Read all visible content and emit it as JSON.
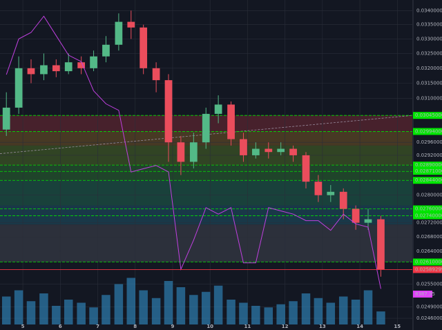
{
  "chart_data": {
    "type": "candlestick",
    "log_scale": true,
    "grid": true,
    "background": "#131722",
    "up_color": "#53b987",
    "down_color": "#eb4d5c",
    "xlim": [
      4.39,
      15.4
    ],
    "xticks": [
      5,
      6,
      7,
      8,
      9,
      10,
      11,
      12,
      13,
      14,
      15
    ],
    "ylim": [
      0.02444,
      0.03438
    ],
    "yticks": [
      {
        "value": 0.034,
        "label": "0.03400000"
      },
      {
        "value": 0.0335,
        "label": "0.03350000"
      },
      {
        "value": 0.033,
        "label": "0.03300000"
      },
      {
        "value": 0.0325,
        "label": "0.03250000"
      },
      {
        "value": 0.032,
        "label": "0.03200000"
      },
      {
        "value": 0.0315,
        "label": "0.03150000"
      },
      {
        "value": 0.031,
        "label": "0.03100000"
      },
      {
        "value": 0.0296,
        "label": "0.02960000"
      },
      {
        "value": 0.0292,
        "label": "0.02920000"
      },
      {
        "value": 0.028,
        "label": "0.02800000"
      },
      {
        "value": 0.0272,
        "label": "0.02720000"
      },
      {
        "value": 0.0268,
        "label": "0.02680000"
      },
      {
        "value": 0.0264,
        "label": "0.02640000"
      },
      {
        "value": 0.0255,
        "label": "0.02550000"
      },
      {
        "value": 0.0249,
        "label": "0.02490000"
      },
      {
        "value": 0.0246,
        "label": "0.02460000"
      }
    ],
    "x": [
      4.56,
      4.89,
      5.22,
      5.56,
      5.89,
      6.22,
      6.56,
      6.89,
      7.22,
      7.56,
      7.89,
      8.22,
      8.56,
      8.89,
      9.22,
      9.56,
      9.89,
      10.22,
      10.56,
      10.89,
      11.22,
      11.56,
      11.89,
      12.22,
      12.56,
      12.89,
      13.22,
      13.56,
      13.89,
      14.22,
      14.56
    ],
    "open": [
      0.03,
      0.0307,
      0.032,
      0.0318,
      0.0321,
      0.0319,
      0.0322,
      0.032,
      0.0324,
      0.0328,
      0.0336,
      0.0334,
      0.032,
      0.0316,
      0.0296,
      0.029,
      0.0296,
      0.0305,
      0.0308,
      0.0297,
      0.0292,
      0.0294,
      0.0293,
      0.0294,
      0.0292,
      0.0284,
      0.028,
      0.0281,
      0.0276,
      0.0272,
      0.0273
    ],
    "high": [
      0.0312,
      0.0324,
      0.0323,
      0.0325,
      0.0323,
      0.0325,
      0.0324,
      0.0326,
      0.0331,
      0.0339,
      0.034,
      0.0335,
      0.0322,
      0.0318,
      0.0298,
      0.0299,
      0.0307,
      0.0311,
      0.0309,
      0.0299,
      0.0296,
      0.0296,
      0.0296,
      0.0295,
      0.0293,
      0.0286,
      0.0283,
      0.0282,
      0.0277,
      0.0276,
      0.0274
    ],
    "low": [
      0.0298,
      0.0305,
      0.0315,
      0.0316,
      0.0317,
      0.0318,
      0.0318,
      0.0319,
      0.0322,
      0.0326,
      0.033,
      0.0318,
      0.0312,
      0.029,
      0.0286,
      0.0288,
      0.0294,
      0.0302,
      0.0295,
      0.029,
      0.0291,
      0.0291,
      0.0292,
      0.029,
      0.0282,
      0.0278,
      0.0278,
      0.0273,
      0.027,
      0.027,
      0.0257
    ],
    "close": [
      0.0307,
      0.032,
      0.0318,
      0.0321,
      0.0319,
      0.0322,
      0.032,
      0.0324,
      0.0328,
      0.0336,
      0.0334,
      0.032,
      0.0316,
      0.0296,
      0.029,
      0.0296,
      0.0305,
      0.0308,
      0.0297,
      0.0292,
      0.0294,
      0.0293,
      0.0294,
      0.0292,
      0.0284,
      0.028,
      0.0281,
      0.0276,
      0.0272,
      0.0273,
      0.02589299
    ],
    "price_line_color": "#f23645",
    "volume": {
      "color": "#2e7fb0",
      "label_color": "#e040fb",
      "ylim": [
        0,
        40000
      ],
      "values": [
        18000,
        22000,
        15000,
        20000,
        12000,
        16000,
        14000,
        11000,
        19000,
        26000,
        30000,
        22000,
        17000,
        28000,
        24000,
        19000,
        21000,
        25000,
        16000,
        14000,
        12000,
        11000,
        13000,
        15000,
        20000,
        17000,
        14000,
        18000,
        16000,
        22000,
        8387.35
      ]
    },
    "indicator": {
      "axis": "y2",
      "color": "#c040e0",
      "values": [
        77,
        88,
        90,
        95,
        89,
        83,
        81,
        72,
        68,
        66,
        47,
        48,
        49,
        47,
        17,
        26,
        36,
        34,
        36,
        19,
        19,
        36,
        35,
        34,
        32,
        32,
        29,
        34,
        31,
        30,
        11
      ]
    },
    "y2lim": [
      0,
      100
    ],
    "levels": {
      "color": "#00e600",
      "items": [
        {
          "value": 0.03045,
          "label": "0.03045000"
        },
        {
          "value": 0.02994,
          "label": "0.02994000"
        },
        {
          "value": 0.0289,
          "label": "0.02890000"
        },
        {
          "value": 0.02871,
          "label": "0.02871000"
        },
        {
          "value": 0.02844,
          "label": "0.02844000"
        },
        {
          "value": 0.0276,
          "label": "0.02760000"
        },
        {
          "value": 0.0274,
          "label": "0.02740000"
        },
        {
          "value": 0.0261,
          "label": "0.02610000"
        }
      ]
    },
    "bands": [
      {
        "from": 0.03045,
        "to": 0.02994,
        "color": "#5a2630"
      },
      {
        "from": 0.02994,
        "to": 0.0295,
        "color": "#5a4626"
      },
      {
        "from": 0.0295,
        "to": 0.0289,
        "color": "#3c5426"
      },
      {
        "from": 0.0289,
        "to": 0.02844,
        "color": "#24542e"
      },
      {
        "from": 0.02844,
        "to": 0.0277,
        "color": "#1c5044"
      },
      {
        "from": 0.0277,
        "to": 0.02715,
        "color": "#1c4456"
      },
      {
        "from": 0.02715,
        "to": 0.0261,
        "color": "#363944"
      }
    ],
    "trendline": {
      "color": "#9a8ea0",
      "x": [
        4.39,
        15.4
      ],
      "y": [
        0.02925,
        0.03045
      ]
    }
  }
}
